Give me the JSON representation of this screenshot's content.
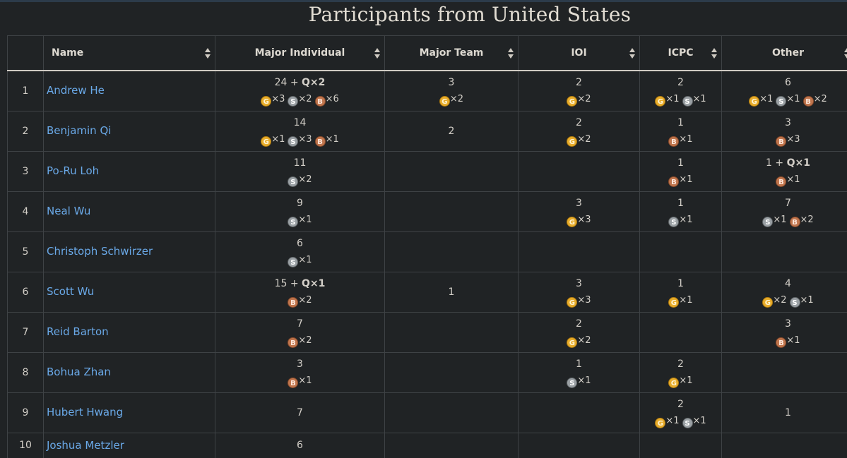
{
  "page_title": "Participants from United States",
  "columns": [
    "",
    "Name",
    "Major Individual",
    "Major Team",
    "IOI",
    "ICPC",
    "Other"
  ],
  "medal_letters": {
    "g": "G",
    "s": "S",
    "b": "B"
  },
  "colors": {
    "gold": "#e8ad2c",
    "silver": "#9aa0a4",
    "bronze": "#c0764e",
    "link": "#6aa9e8",
    "background": "#202325"
  },
  "rows": [
    {
      "rank": "1",
      "name": "Andrew He",
      "cells": [
        {
          "total": "24 + ",
          "q": "Q×2",
          "medals": [
            [
              "g",
              "×3"
            ],
            [
              "s",
              "×2"
            ],
            [
              "b",
              "×6"
            ]
          ]
        },
        {
          "total": "3",
          "medals": [
            [
              "g",
              "×2"
            ]
          ]
        },
        {
          "total": "2",
          "medals": [
            [
              "g",
              "×2"
            ]
          ]
        },
        {
          "total": "2",
          "medals": [
            [
              "g",
              "×1"
            ],
            [
              "s",
              "×1"
            ]
          ]
        },
        {
          "total": "6",
          "medals": [
            [
              "g",
              "×1"
            ],
            [
              "s",
              "×1"
            ],
            [
              "b",
              "×2"
            ]
          ]
        }
      ]
    },
    {
      "rank": "2",
      "name": "Benjamin Qi",
      "cells": [
        {
          "total": "14",
          "medals": [
            [
              "g",
              "×1"
            ],
            [
              "s",
              "×3"
            ],
            [
              "b",
              "×1"
            ]
          ]
        },
        {
          "total": "2",
          "medals": []
        },
        {
          "total": "2",
          "medals": [
            [
              "g",
              "×2"
            ]
          ]
        },
        {
          "total": "1",
          "medals": [
            [
              "b",
              "×1"
            ]
          ]
        },
        {
          "total": "3",
          "medals": [
            [
              "b",
              "×3"
            ]
          ]
        }
      ]
    },
    {
      "rank": "3",
      "name": "Po-Ru Loh",
      "cells": [
        {
          "total": "11",
          "medals": [
            [
              "s",
              "×2"
            ]
          ]
        },
        null,
        null,
        {
          "total": "1",
          "medals": [
            [
              "b",
              "×1"
            ]
          ]
        },
        {
          "total": "1 + ",
          "q": "Q×1",
          "medals": [
            [
              "b",
              "×1"
            ]
          ]
        }
      ]
    },
    {
      "rank": "4",
      "name": "Neal Wu",
      "cells": [
        {
          "total": "9",
          "medals": [
            [
              "s",
              "×1"
            ]
          ]
        },
        null,
        {
          "total": "3",
          "medals": [
            [
              "g",
              "×3"
            ]
          ]
        },
        {
          "total": "1",
          "medals": [
            [
              "s",
              "×1"
            ]
          ]
        },
        {
          "total": "7",
          "medals": [
            [
              "s",
              "×1"
            ],
            [
              "b",
              "×2"
            ]
          ]
        }
      ]
    },
    {
      "rank": "5",
      "name": "Christoph Schwirzer",
      "cells": [
        {
          "total": "6",
          "medals": [
            [
              "s",
              "×1"
            ]
          ]
        },
        null,
        null,
        null,
        null
      ]
    },
    {
      "rank": "6",
      "name": "Scott Wu",
      "cells": [
        {
          "total": "15 + ",
          "q": "Q×1",
          "medals": [
            [
              "b",
              "×2"
            ]
          ]
        },
        {
          "total": "1",
          "medals": []
        },
        {
          "total": "3",
          "medals": [
            [
              "g",
              "×3"
            ]
          ]
        },
        {
          "total": "1",
          "medals": [
            [
              "g",
              "×1"
            ]
          ]
        },
        {
          "total": "4",
          "medals": [
            [
              "g",
              "×2"
            ],
            [
              "s",
              "×1"
            ]
          ]
        }
      ]
    },
    {
      "rank": "7",
      "name": "Reid Barton",
      "cells": [
        {
          "total": "7",
          "medals": [
            [
              "b",
              "×2"
            ]
          ]
        },
        null,
        {
          "total": "2",
          "medals": [
            [
              "g",
              "×2"
            ]
          ]
        },
        null,
        {
          "total": "3",
          "medals": [
            [
              "b",
              "×1"
            ]
          ]
        }
      ]
    },
    {
      "rank": "8",
      "name": "Bohua Zhan",
      "cells": [
        {
          "total": "3",
          "medals": [
            [
              "b",
              "×1"
            ]
          ]
        },
        null,
        {
          "total": "1",
          "medals": [
            [
              "s",
              "×1"
            ]
          ]
        },
        {
          "total": "2",
          "medals": [
            [
              "g",
              "×1"
            ]
          ]
        },
        null
      ]
    },
    {
      "rank": "9",
      "name": "Hubert Hwang",
      "cells": [
        {
          "total": "7",
          "medals": []
        },
        null,
        null,
        {
          "total": "2",
          "medals": [
            [
              "g",
              "×1"
            ],
            [
              "s",
              "×1"
            ]
          ]
        },
        {
          "total": "1",
          "medals": []
        }
      ]
    },
    {
      "rank": "10",
      "name": "Joshua Metzler",
      "cells": [
        {
          "total": "6",
          "medals": []
        },
        null,
        null,
        null,
        null
      ]
    }
  ]
}
